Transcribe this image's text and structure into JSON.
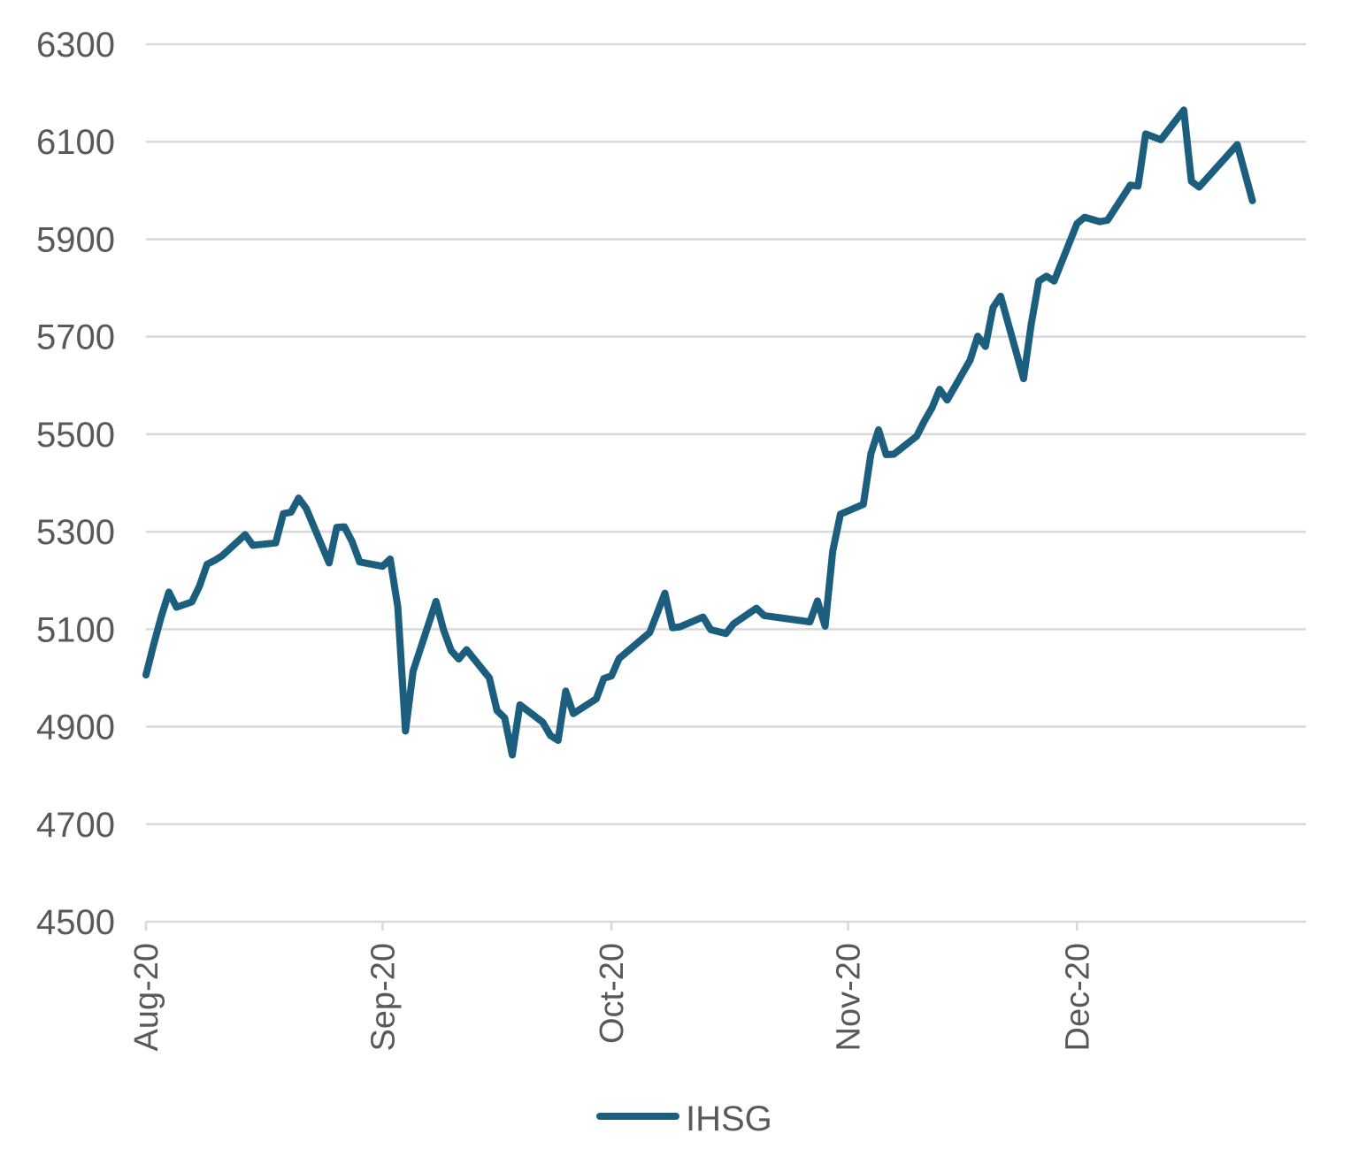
{
  "chart_data": {
    "type": "line",
    "title": "",
    "xlabel": "",
    "ylabel": "",
    "ylim": [
      4500,
      6300
    ],
    "yticks": [
      "4500",
      "4700",
      "4900",
      "5100",
      "5300",
      "5500",
      "5700",
      "5900",
      "6100",
      "6300"
    ],
    "xlim": [
      "2020-08-01",
      "2020-12-31"
    ],
    "xticks": [
      {
        "date": "2020-08-01",
        "label": "Aug-20"
      },
      {
        "date": "2020-09-01",
        "label": "Sep-20"
      },
      {
        "date": "2020-10-01",
        "label": "Oct-20"
      },
      {
        "date": "2020-11-01",
        "label": "Nov-20"
      },
      {
        "date": "2020-12-01",
        "label": "Dec-20"
      }
    ],
    "grid": true,
    "legend_position": "bottom",
    "series": [
      {
        "name": "IHSG",
        "color": "#1b5e7e",
        "points": [
          [
            "2020-08-01",
            5006
          ],
          [
            "2020-08-02",
            5068
          ],
          [
            "2020-08-03",
            5126
          ],
          [
            "2020-08-04",
            5176
          ],
          [
            "2020-08-05",
            5145
          ],
          [
            "2020-08-07",
            5156
          ],
          [
            "2020-08-08",
            5188
          ],
          [
            "2020-08-09",
            5233
          ],
          [
            "2020-08-10",
            5241
          ],
          [
            "2020-08-11",
            5251
          ],
          [
            "2020-08-14",
            5294
          ],
          [
            "2020-08-15",
            5272
          ],
          [
            "2020-08-18",
            5277
          ],
          [
            "2020-08-19",
            5337
          ],
          [
            "2020-08-20",
            5340
          ],
          [
            "2020-08-21",
            5369
          ],
          [
            "2020-08-22",
            5348
          ],
          [
            "2020-08-25",
            5236
          ],
          [
            "2020-08-26",
            5309
          ],
          [
            "2020-08-27",
            5310
          ],
          [
            "2020-08-28",
            5280
          ],
          [
            "2020-08-29",
            5238
          ],
          [
            "2020-09-01",
            5229
          ],
          [
            "2020-09-02",
            5244
          ],
          [
            "2020-09-03",
            5146
          ],
          [
            "2020-09-04",
            4891
          ],
          [
            "2020-09-05",
            5014
          ],
          [
            "2020-09-08",
            5157
          ],
          [
            "2020-09-09",
            5098
          ],
          [
            "2020-09-10",
            5056
          ],
          [
            "2020-09-11",
            5039
          ],
          [
            "2020-09-12",
            5058
          ],
          [
            "2020-09-15",
            5000
          ],
          [
            "2020-09-16",
            4933
          ],
          [
            "2020-09-17",
            4918
          ],
          [
            "2020-09-18",
            4842
          ],
          [
            "2020-09-19",
            4945
          ],
          [
            "2020-09-22",
            4909
          ],
          [
            "2020-09-23",
            4882
          ],
          [
            "2020-09-24",
            4872
          ],
          [
            "2020-09-25",
            4973
          ],
          [
            "2020-09-26",
            4927
          ],
          [
            "2020-09-29",
            4957
          ],
          [
            "2020-09-30",
            4999
          ],
          [
            "2020-10-01",
            5004
          ],
          [
            "2020-10-02",
            5040
          ],
          [
            "2020-10-06",
            5093
          ],
          [
            "2020-10-07",
            5133
          ],
          [
            "2020-10-08",
            5174
          ],
          [
            "2020-10-09",
            5103
          ],
          [
            "2020-10-10",
            5105
          ],
          [
            "2020-10-13",
            5125
          ],
          [
            "2020-10-14",
            5099
          ],
          [
            "2020-10-16",
            5091
          ],
          [
            "2020-10-17",
            5111
          ],
          [
            "2020-10-20",
            5143
          ],
          [
            "2020-10-21",
            5128
          ],
          [
            "2020-10-27",
            5115
          ],
          [
            "2020-10-28",
            5158
          ],
          [
            "2020-10-29",
            5106
          ],
          [
            "2020-10-30",
            5260
          ],
          [
            "2020-10-31",
            5336
          ],
          [
            "2020-11-03",
            5356
          ],
          [
            "2020-11-04",
            5460
          ],
          [
            "2020-11-05",
            5509
          ],
          [
            "2020-11-06",
            5458
          ],
          [
            "2020-11-07",
            5459
          ],
          [
            "2020-11-10",
            5496
          ],
          [
            "2020-11-11",
            5527
          ],
          [
            "2020-11-12",
            5554
          ],
          [
            "2020-11-13",
            5592
          ],
          [
            "2020-11-14",
            5570
          ],
          [
            "2020-11-17",
            5652
          ],
          [
            "2020-11-18",
            5701
          ],
          [
            "2020-11-19",
            5680
          ],
          [
            "2020-11-20",
            5760
          ],
          [
            "2020-11-21",
            5783
          ],
          [
            "2020-11-24",
            5614
          ],
          [
            "2020-11-25",
            5725
          ],
          [
            "2020-11-26",
            5814
          ],
          [
            "2020-11-27",
            5824
          ],
          [
            "2020-11-28",
            5814
          ],
          [
            "2020-12-01",
            5932
          ],
          [
            "2020-12-02",
            5945
          ],
          [
            "2020-12-04",
            5936
          ],
          [
            "2020-12-05",
            5939
          ],
          [
            "2020-12-08",
            6011
          ],
          [
            "2020-12-09",
            6009
          ],
          [
            "2020-12-10",
            6116
          ],
          [
            "2020-12-12",
            6104
          ],
          [
            "2020-12-15",
            6165
          ],
          [
            "2020-12-16",
            6019
          ],
          [
            "2020-12-17",
            6007
          ],
          [
            "2020-12-22",
            6094
          ],
          [
            "2020-12-24",
            5979
          ]
        ]
      }
    ]
  }
}
